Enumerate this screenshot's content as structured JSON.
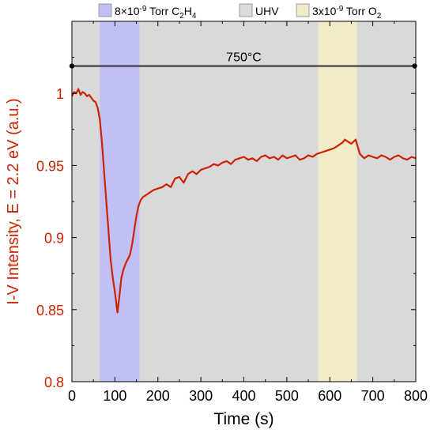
{
  "chart_data": {
    "type": "line",
    "xlabel": "Time (s)",
    "ylabel": "I-V Intensity, E = 2.2 eV (a.u.)",
    "xlim": [
      0,
      800
    ],
    "ylim": [
      0.8,
      1.05
    ],
    "x_ticks": [
      0,
      100,
      200,
      300,
      400,
      500,
      600,
      700,
      800
    ],
    "y_ticks": [
      0.8,
      0.85,
      0.9,
      0.95,
      1
    ],
    "y_tick_labels": [
      "0.8",
      "0.85",
      "0.9",
      "0.95",
      "1"
    ],
    "grid": false,
    "background_color": "#d9d9d9",
    "series_color": "#cc2200",
    "ylabel_color": "#cc2200",
    "legend_position": "top",
    "legend": [
      {
        "label_main": "8×10",
        "label_sup": "-9",
        "label_rest": " Torr C",
        "sub1": "2",
        "mid": "H",
        "sub2": "4",
        "color": "#c1c0f5"
      },
      {
        "label_main": "UHV",
        "label_sup": "",
        "label_rest": "",
        "sub1": "",
        "mid": "",
        "sub2": "",
        "color": "#dcdcdc"
      },
      {
        "label_main": "3x10",
        "label_sup": "-9",
        "label_rest": " Torr O",
        "sub1": "2",
        "mid": "",
        "sub2": "",
        "color": "#f2ebc8"
      }
    ],
    "regions": [
      {
        "x_start": 65,
        "x_end": 157,
        "color": "#c1c0f5",
        "label": "8×10-9 Torr C2H4"
      },
      {
        "x_start": 573,
        "x_end": 663,
        "color": "#f2ebc8",
        "label": "3x10-9 Torr O2"
      }
    ],
    "annotation": {
      "text": "750°C",
      "x_start": 0,
      "x_end": 790,
      "y": 1.019
    },
    "series": [
      {
        "x": [
          0,
          5,
          10,
          15,
          20,
          25,
          30,
          35,
          40,
          45,
          50,
          55,
          60,
          65,
          70,
          75,
          80,
          85,
          90,
          95,
          100,
          103,
          106,
          110,
          115,
          120,
          125,
          130,
          135,
          140,
          145,
          150,
          155,
          160,
          165,
          170,
          175,
          180,
          190,
          200,
          210,
          220,
          230,
          240,
          250,
          260,
          270,
          280,
          290,
          300,
          310,
          320,
          330,
          340,
          350,
          360,
          370,
          380,
          390,
          400,
          410,
          420,
          430,
          440,
          450,
          460,
          470,
          480,
          490,
          500,
          510,
          520,
          530,
          540,
          550,
          560,
          570,
          580,
          590,
          600,
          610,
          620,
          630,
          635,
          640,
          650,
          660,
          665,
          670,
          680,
          690,
          700,
          710,
          720,
          730,
          740,
          750,
          760,
          770,
          780,
          790,
          800
        ],
        "y": [
          0.998,
          1.001,
          1.0,
          1.003,
          0.999,
          1.001,
          1.0,
          0.998,
          0.999,
          0.997,
          0.995,
          0.994,
          0.99,
          0.982,
          0.965,
          0.945,
          0.925,
          0.905,
          0.885,
          0.872,
          0.862,
          0.855,
          0.848,
          0.858,
          0.872,
          0.878,
          0.882,
          0.885,
          0.888,
          0.895,
          0.905,
          0.915,
          0.922,
          0.926,
          0.928,
          0.929,
          0.93,
          0.931,
          0.933,
          0.934,
          0.935,
          0.937,
          0.935,
          0.941,
          0.942,
          0.938,
          0.944,
          0.946,
          0.944,
          0.947,
          0.948,
          0.949,
          0.951,
          0.95,
          0.952,
          0.953,
          0.951,
          0.954,
          0.955,
          0.956,
          0.954,
          0.955,
          0.953,
          0.956,
          0.957,
          0.955,
          0.956,
          0.954,
          0.957,
          0.955,
          0.956,
          0.957,
          0.954,
          0.955,
          0.957,
          0.956,
          0.958,
          0.959,
          0.96,
          0.961,
          0.962,
          0.964,
          0.966,
          0.968,
          0.967,
          0.965,
          0.968,
          0.963,
          0.958,
          0.955,
          0.957,
          0.956,
          0.955,
          0.957,
          0.956,
          0.954,
          0.956,
          0.957,
          0.955,
          0.954,
          0.956,
          0.955
        ]
      }
    ]
  }
}
